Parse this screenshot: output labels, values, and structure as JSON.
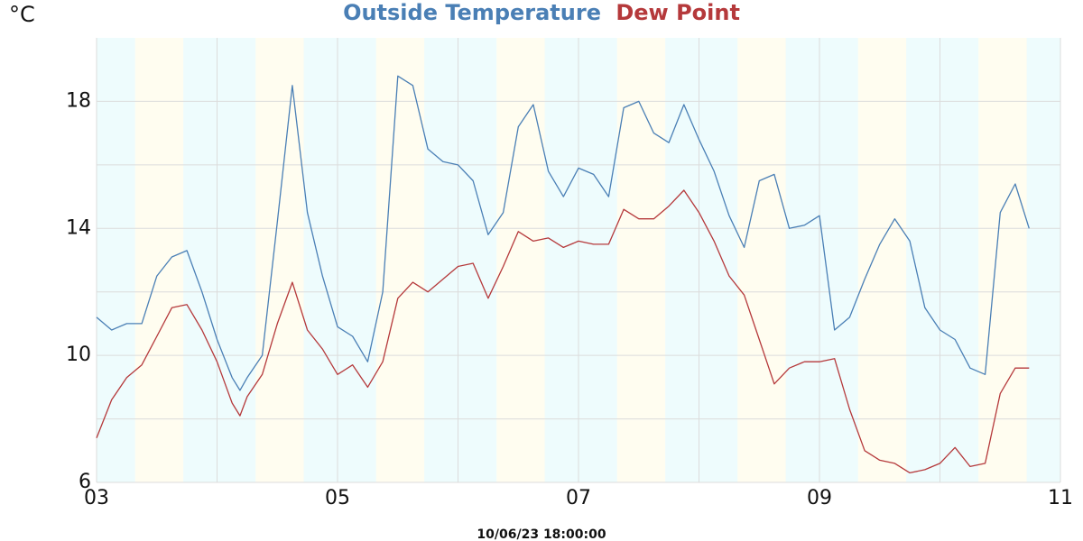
{
  "chart_data": {
    "type": "line",
    "y_unit": "°C",
    "x_label": "10/06/23 18:00:00",
    "x": [
      3,
      3.125,
      3.25,
      3.375,
      3.5,
      3.625,
      3.75,
      3.875,
      4,
      4.125,
      4.19,
      4.25,
      4.375,
      4.5,
      4.625,
      4.75,
      4.875,
      5,
      5.125,
      5.25,
      5.375,
      5.5,
      5.625,
      5.75,
      5.875,
      6,
      6.125,
      6.25,
      6.375,
      6.5,
      6.625,
      6.75,
      6.875,
      7,
      7.125,
      7.25,
      7.375,
      7.5,
      7.625,
      7.75,
      7.875,
      8,
      8.125,
      8.25,
      8.375,
      8.5,
      8.625,
      8.75,
      8.875,
      9,
      9.125,
      9.25,
      9.375,
      9.5,
      9.625,
      9.75,
      9.875,
      10,
      10.125,
      10.25,
      10.375,
      10.5,
      10.625,
      10.74
    ],
    "series": [
      {
        "name": "Outside Temperature",
        "color": "#4a7fb5",
        "values": [
          11.2,
          10.8,
          11.0,
          11.0,
          12.5,
          13.1,
          13.3,
          12.0,
          10.5,
          9.3,
          8.9,
          9.3,
          10.0,
          14.2,
          18.5,
          14.5,
          12.5,
          10.9,
          10.6,
          9.8,
          12.0,
          18.8,
          18.5,
          16.5,
          16.1,
          16.0,
          15.5,
          13.8,
          14.5,
          17.2,
          17.9,
          15.8,
          15.0,
          15.9,
          15.7,
          15.0,
          17.8,
          18.0,
          17.0,
          16.7,
          17.9,
          16.8,
          15.8,
          14.4,
          13.4,
          15.5,
          15.7,
          14.0,
          14.1,
          14.4,
          10.8,
          11.2,
          12.4,
          13.5,
          14.3,
          13.6,
          11.5,
          10.8,
          10.5,
          9.6,
          9.4,
          14.5,
          15.4,
          14.0
        ]
      },
      {
        "name": "Dew Point",
        "color": "#b5393b",
        "values": [
          7.4,
          8.6,
          9.3,
          9.7,
          10.6,
          11.5,
          11.6,
          10.8,
          9.8,
          8.5,
          8.1,
          8.7,
          9.4,
          11.0,
          12.3,
          10.8,
          10.2,
          9.4,
          9.7,
          9.0,
          9.8,
          11.8,
          12.3,
          12.0,
          12.4,
          12.8,
          12.9,
          11.8,
          12.8,
          13.9,
          13.6,
          13.7,
          13.4,
          13.6,
          13.5,
          13.5,
          14.6,
          14.3,
          14.3,
          14.7,
          15.2,
          14.5,
          13.6,
          12.5,
          11.9,
          10.5,
          9.1,
          9.6,
          9.8,
          9.8,
          9.9,
          8.3,
          7.0,
          6.7,
          6.6,
          6.3,
          6.4,
          6.6,
          7.1,
          6.5,
          6.6,
          8.8,
          9.6,
          9.6
        ]
      }
    ],
    "xlim": [
      3,
      11
    ],
    "xticks": [
      {
        "value": 3,
        "label": "03"
      },
      {
        "value": 5,
        "label": "05"
      },
      {
        "value": 7,
        "label": "07"
      },
      {
        "value": 9,
        "label": "09"
      },
      {
        "value": 11,
        "label": "11"
      }
    ],
    "minor_xticks": [
      4,
      6,
      8,
      10
    ],
    "ylim": [
      6,
      20
    ],
    "yticks": [
      6,
      10,
      14,
      18
    ],
    "minor_yticks": [
      8,
      12,
      16
    ],
    "grid": true,
    "background_color": "#eefcfd",
    "day_color": "#fffdf0",
    "day_bands": [
      [
        3.32,
        3.72
      ],
      [
        4.32,
        4.72
      ],
      [
        5.32,
        5.72
      ],
      [
        6.32,
        6.72
      ],
      [
        7.32,
        7.72
      ],
      [
        8.32,
        8.72
      ],
      [
        9.32,
        9.72
      ],
      [
        10.32,
        10.72
      ]
    ]
  }
}
